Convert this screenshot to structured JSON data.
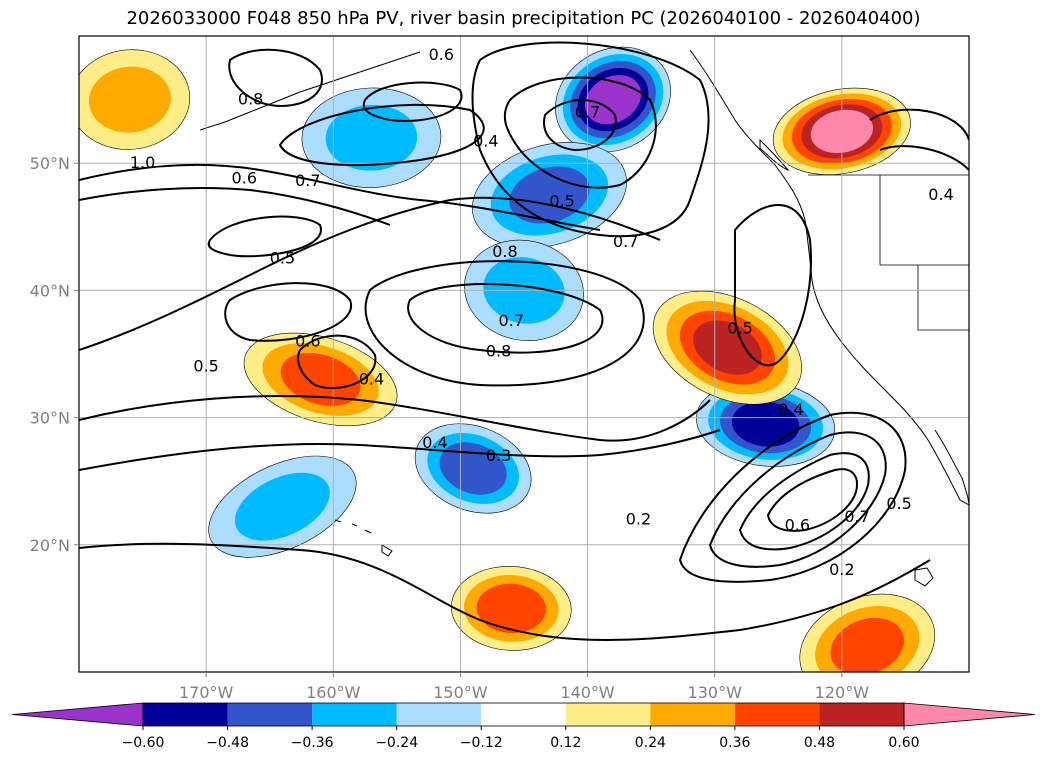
{
  "chart_data": {
    "type": "map-contour",
    "title": "2026033000 F048 850 hPa PV, river basin precipitation PC (2026040100 - 2026040400)",
    "xlim": [
      -180,
      -110
    ],
    "ylim": [
      10,
      60
    ],
    "x_ticks": [
      -170,
      -160,
      -150,
      -140,
      -130,
      -120
    ],
    "x_tick_labels": [
      "170°W",
      "160°W",
      "150°W",
      "140°W",
      "130°W",
      "120°W"
    ],
    "y_ticks": [
      20,
      30,
      40,
      50
    ],
    "y_tick_labels": [
      "20°N",
      "30°N",
      "40°N",
      "50°N"
    ],
    "grid": true,
    "colorbar": {
      "orientation": "horizontal",
      "extend": "both",
      "levels": [
        -0.6,
        -0.48,
        -0.36,
        -0.24,
        -0.12,
        0.12,
        0.24,
        0.36,
        0.48,
        0.6
      ],
      "tick_labels": [
        "−0.60",
        "−0.48",
        "−0.36",
        "−0.24",
        "−0.12",
        "0.12",
        "0.24",
        "0.36",
        "0.48",
        "0.60"
      ],
      "colors": [
        "#9933cc",
        "#000099",
        "#3355cc",
        "#00bbff",
        "#aaddff",
        "#ffffff",
        "#ffee88",
        "#ffaa00",
        "#ff4400",
        "#bb2222",
        "#ff88aa"
      ]
    },
    "contour_labels": [
      {
        "text": "0.6",
        "lon": -151.5,
        "lat": 58.5
      },
      {
        "text": "0.6",
        "lon": -167.0,
        "lat": 48.8
      },
      {
        "text": "0.8",
        "lon": -166.5,
        "lat": 55.0
      },
      {
        "text": "1.0",
        "lon": -175.0,
        "lat": 50.0
      },
      {
        "text": "0.7",
        "lon": -162.0,
        "lat": 48.6
      },
      {
        "text": "0.5",
        "lon": -164.0,
        "lat": 42.5
      },
      {
        "text": "0.6",
        "lon": -162.0,
        "lat": 36.0
      },
      {
        "text": "0.5",
        "lon": -170.0,
        "lat": 34.0
      },
      {
        "text": "0.4",
        "lon": -157.0,
        "lat": 33.0
      },
      {
        "text": "0.4",
        "lon": -148.0,
        "lat": 51.7
      },
      {
        "text": "0.8",
        "lon": -146.5,
        "lat": 43.0
      },
      {
        "text": "0.7",
        "lon": -146.0,
        "lat": 37.6
      },
      {
        "text": "0.8",
        "lon": -147.0,
        "lat": 35.2
      },
      {
        "text": "0.5",
        "lon": -142.0,
        "lat": 47.0
      },
      {
        "text": "0.7",
        "lon": -140.0,
        "lat": 54.0
      },
      {
        "text": "0.7",
        "lon": -137.0,
        "lat": 43.8
      },
      {
        "text": "0.4",
        "lon": -152.0,
        "lat": 28.0
      },
      {
        "text": "0.3",
        "lon": -147.0,
        "lat": 27.0
      },
      {
        "text": "0.2",
        "lon": -136.0,
        "lat": 22.0
      },
      {
        "text": "0.5",
        "lon": -128.0,
        "lat": 37.0
      },
      {
        "text": "0.4",
        "lon": -124.0,
        "lat": 30.6
      },
      {
        "text": "0.6",
        "lon": -123.5,
        "lat": 21.5
      },
      {
        "text": "0.7",
        "lon": -118.8,
        "lat": 22.2
      },
      {
        "text": "0.5",
        "lon": -115.5,
        "lat": 23.2
      },
      {
        "text": "0.2",
        "lon": -120.0,
        "lat": 18.0
      },
      {
        "text": "0.4",
        "lon": -112.2,
        "lat": 47.5
      }
    ],
    "shaded_regions": [
      {
        "sign": "negative",
        "max_abs_value": 0.6,
        "lon": -138.0,
        "lat": 55.0
      },
      {
        "sign": "negative",
        "max_abs_value": 0.48,
        "lon": -126.0,
        "lat": 29.5
      },
      {
        "sign": "negative",
        "max_abs_value": 0.36,
        "lon": -143.0,
        "lat": 47.5
      },
      {
        "sign": "negative",
        "max_abs_value": 0.36,
        "lon": -149.0,
        "lat": 26.0
      },
      {
        "sign": "negative",
        "max_abs_value": 0.24,
        "lon": -157.0,
        "lat": 52.0
      },
      {
        "sign": "negative",
        "max_abs_value": 0.24,
        "lon": -164.0,
        "lat": 23.0
      },
      {
        "sign": "negative",
        "max_abs_value": 0.24,
        "lon": -145.0,
        "lat": 40.0
      },
      {
        "sign": "positive",
        "max_abs_value": 0.6,
        "lon": -120.0,
        "lat": 52.5
      },
      {
        "sign": "positive",
        "max_abs_value": 0.48,
        "lon": -129.0,
        "lat": 35.5
      },
      {
        "sign": "positive",
        "max_abs_value": 0.36,
        "lon": -146.0,
        "lat": 15.0
      },
      {
        "sign": "positive",
        "max_abs_value": 0.36,
        "lon": -118.0,
        "lat": 12.0
      },
      {
        "sign": "positive",
        "max_abs_value": 0.36,
        "lon": -161.0,
        "lat": 33.0
      },
      {
        "sign": "positive",
        "max_abs_value": 0.24,
        "lon": -176.0,
        "lat": 55.0
      }
    ]
  }
}
